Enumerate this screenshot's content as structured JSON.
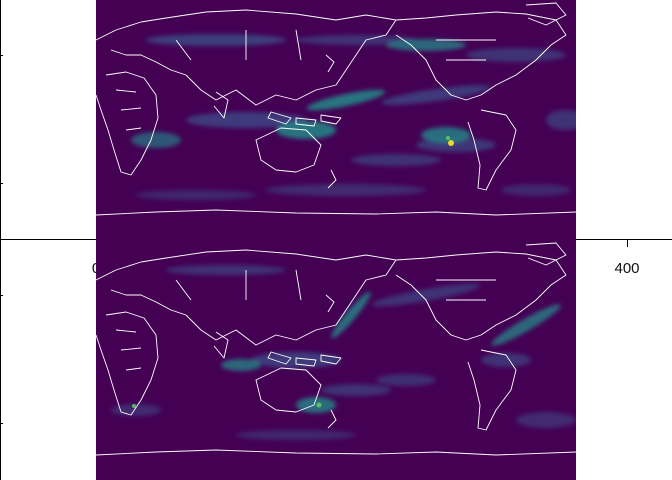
{
  "figure": {
    "panels": [
      "top",
      "bottom"
    ]
  },
  "axes": {
    "x_tick_labels": [
      "0",
      "400"
    ]
  },
  "colors": {
    "background": "#440154",
    "low": "#3b528b",
    "mid": "#21918c",
    "high": "#5ec962",
    "peak": "#fde725",
    "coastline": "#ffffff"
  }
}
